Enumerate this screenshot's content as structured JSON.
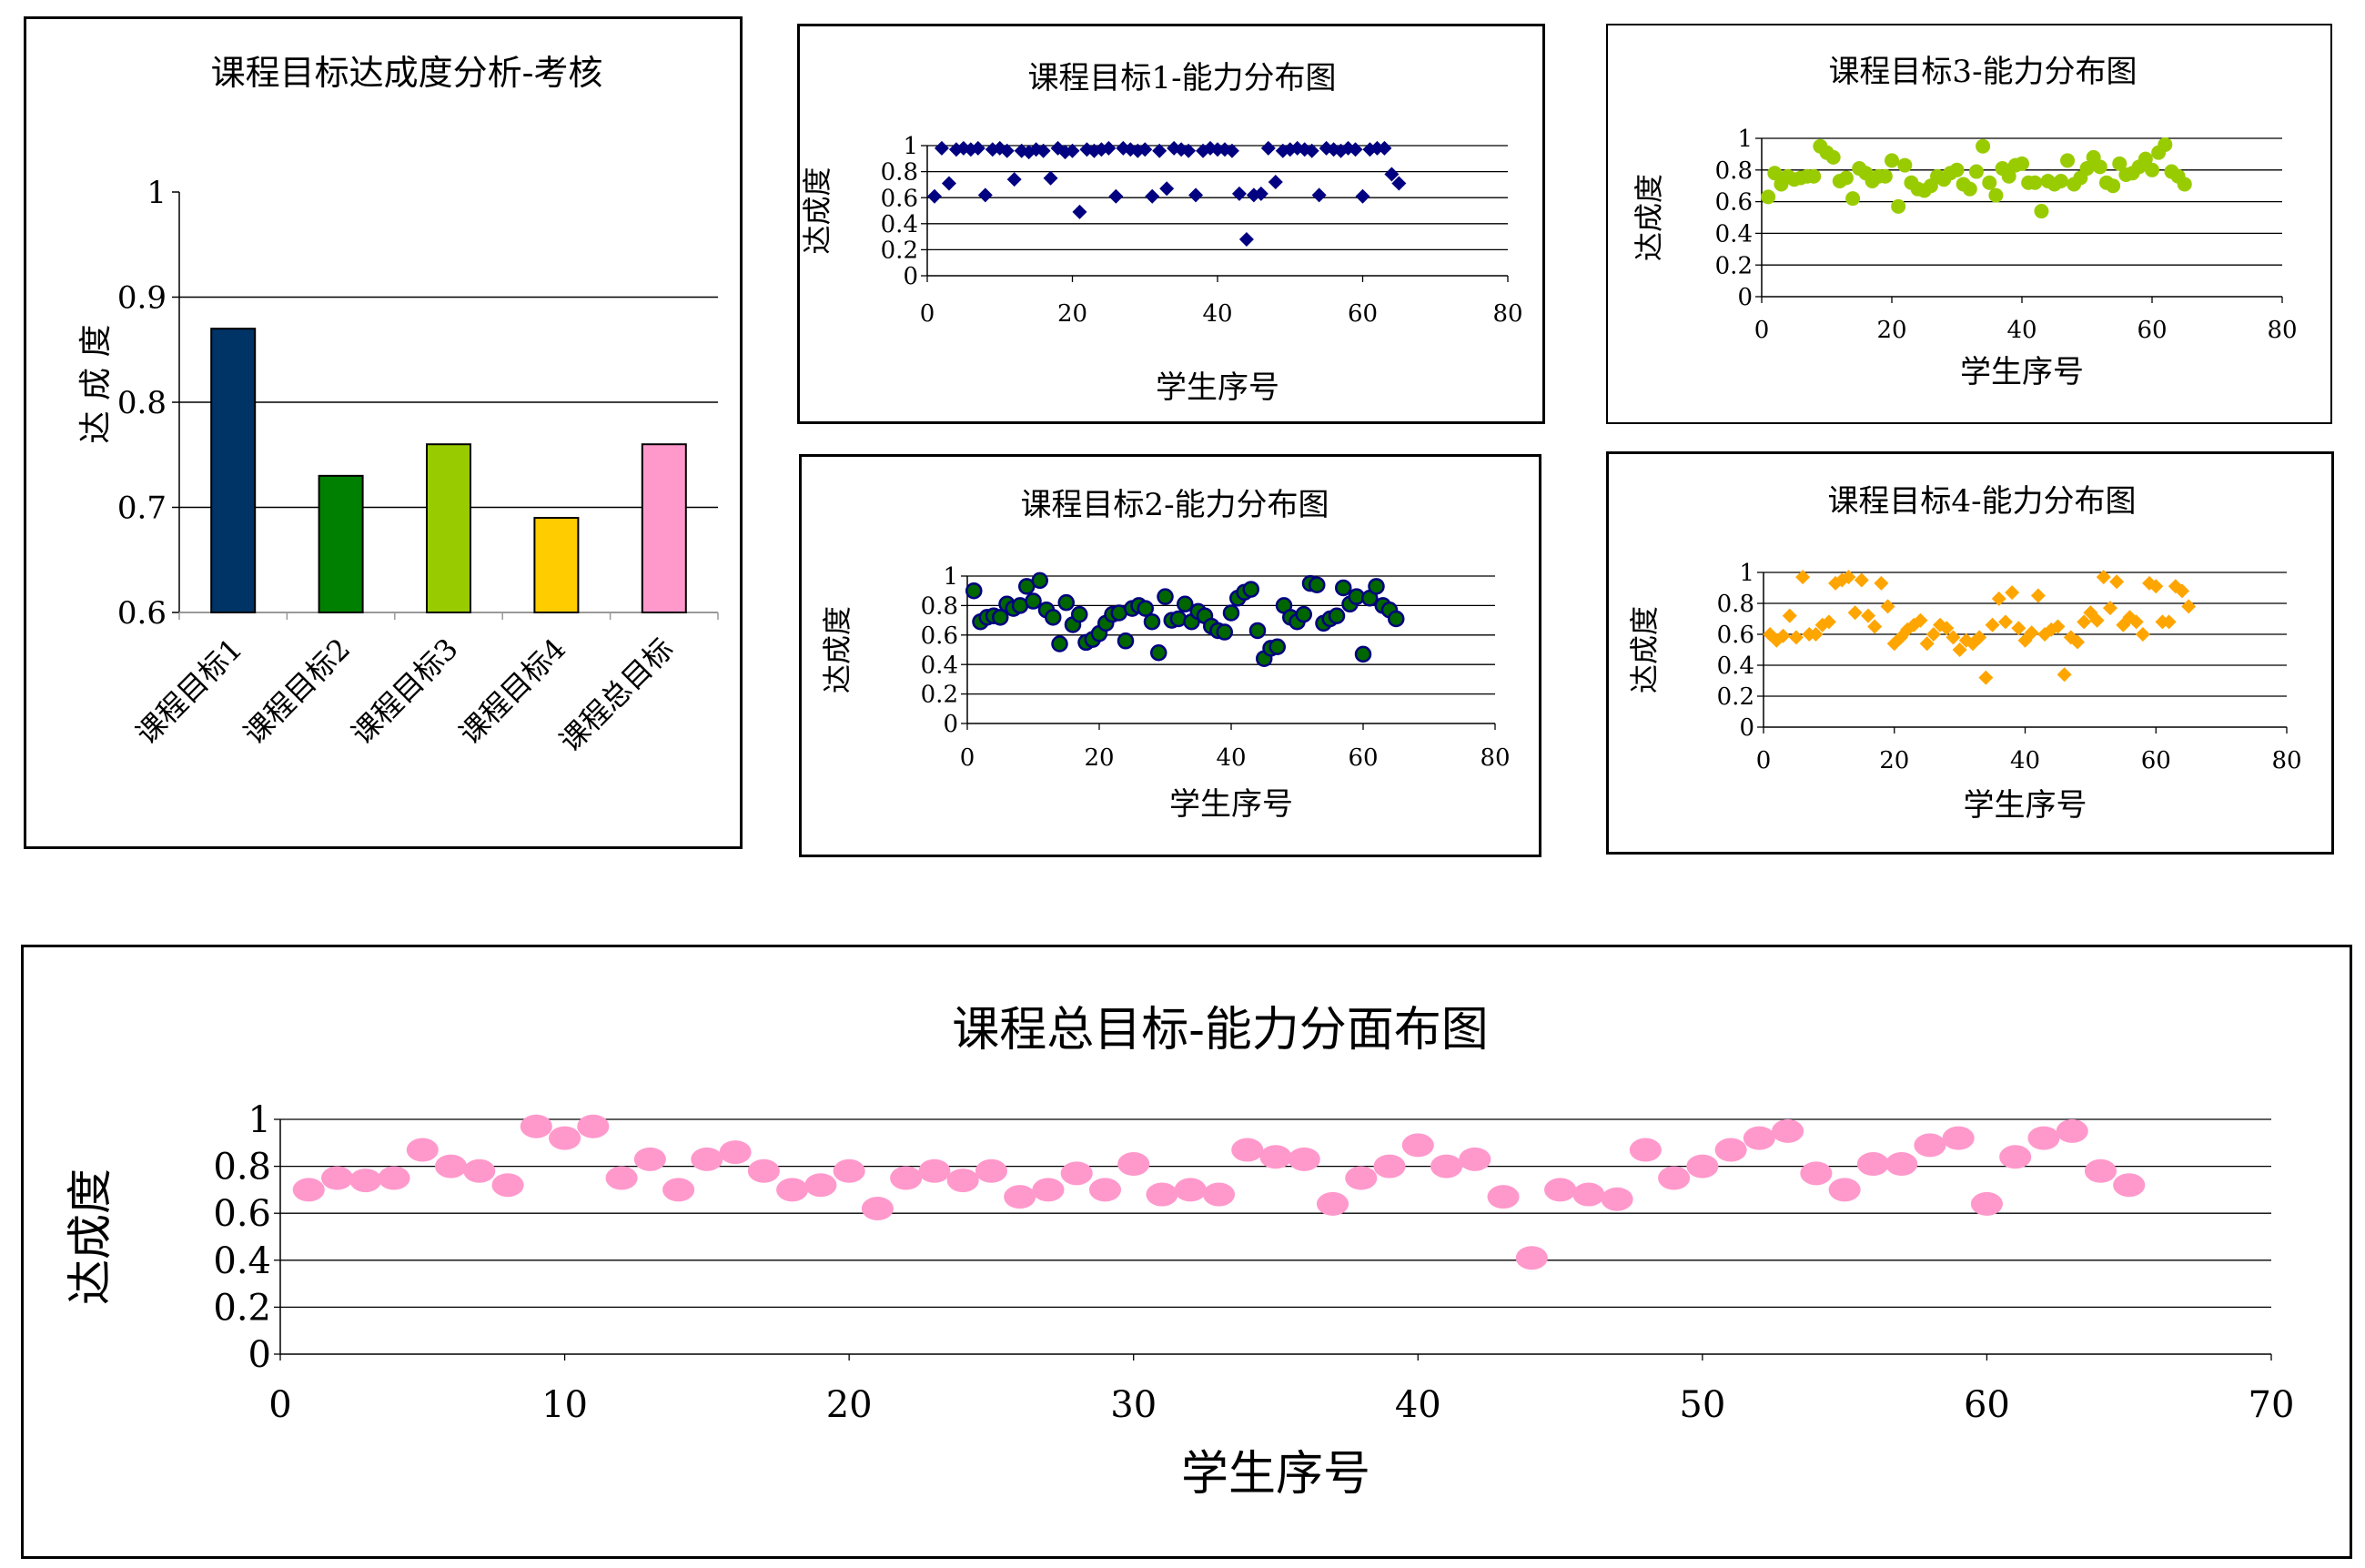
{
  "chart_data": [
    {
      "id": "bar",
      "type": "bar",
      "title": "课程目标达成度分析-考核",
      "ylabel": "达 成 度",
      "ylim": [
        0.6,
        1
      ],
      "yticks": [
        "0.6",
        "0.7",
        "0.8",
        "0.9",
        "1"
      ],
      "categories": [
        "课程目标1",
        "课程目标2",
        "课程目标3",
        "课程目标4",
        "课程总目标"
      ],
      "values": [
        0.87,
        0.73,
        0.76,
        0.69,
        0.76
      ],
      "colors": [
        "#003366",
        "#008000",
        "#99CC00",
        "#FFCC00",
        "#FF99CC"
      ],
      "grid": true
    },
    {
      "id": "s1",
      "type": "scatter",
      "title": "课程目标1-能力分布图",
      "xlabel": "学生序号",
      "ylabel": "达成度",
      "xlim": [
        0,
        80
      ],
      "ylim": [
        0,
        1
      ],
      "xticks": [
        "0",
        "20",
        "40",
        "60",
        "80"
      ],
      "yticks": [
        "0",
        "0.2",
        "0.4",
        "0.6",
        "0.8",
        "1"
      ],
      "marker": "diamond",
      "color": "#000080",
      "x": [
        1,
        2,
        3,
        4,
        5,
        6,
        7,
        8,
        9,
        10,
        11,
        12,
        13,
        14,
        15,
        16,
        17,
        18,
        19,
        20,
        21,
        22,
        23,
        24,
        25,
        26,
        27,
        28,
        29,
        30,
        31,
        32,
        33,
        34,
        35,
        36,
        37,
        38,
        39,
        40,
        41,
        42,
        43,
        44,
        45,
        46,
        47,
        48,
        49,
        50,
        51,
        52,
        53,
        54,
        55,
        56,
        57,
        58,
        59,
        60,
        61,
        62,
        63,
        64,
        65
      ],
      "y": [
        0.61,
        0.98,
        0.71,
        0.97,
        0.98,
        0.97,
        0.98,
        0.62,
        0.97,
        0.98,
        0.96,
        0.74,
        0.96,
        0.95,
        0.97,
        0.96,
        0.75,
        0.98,
        0.95,
        0.96,
        0.49,
        0.97,
        0.96,
        0.97,
        0.98,
        0.61,
        0.98,
        0.97,
        0.96,
        0.97,
        0.61,
        0.96,
        0.67,
        0.98,
        0.97,
        0.96,
        0.62,
        0.96,
        0.98,
        0.97,
        0.97,
        0.96,
        0.63,
        0.28,
        0.62,
        0.63,
        0.98,
        0.72,
        0.96,
        0.97,
        0.98,
        0.97,
        0.96,
        0.62,
        0.98,
        0.97,
        0.96,
        0.98,
        0.97,
        0.61,
        0.97,
        0.98,
        0.98,
        0.78,
        0.71
      ],
      "grid": true
    },
    {
      "id": "s3",
      "type": "scatter",
      "title": "课程目标3-能力分布图",
      "xlabel": "学生序号",
      "ylabel": "达成度",
      "xlim": [
        0,
        80
      ],
      "ylim": [
        0,
        1
      ],
      "xticks": [
        "0",
        "20",
        "40",
        "60",
        "80"
      ],
      "yticks": [
        "0",
        "0.2",
        "0.4",
        "0.6",
        "0.8",
        "1"
      ],
      "marker": "circle",
      "color": "#99CC00",
      "x": [
        1,
        2,
        3,
        4,
        5,
        6,
        7,
        8,
        9,
        10,
        11,
        12,
        13,
        14,
        15,
        16,
        17,
        18,
        19,
        20,
        21,
        22,
        23,
        24,
        25,
        26,
        27,
        28,
        29,
        30,
        31,
        32,
        33,
        34,
        35,
        36,
        37,
        38,
        39,
        40,
        41,
        42,
        43,
        44,
        45,
        46,
        47,
        48,
        49,
        50,
        51,
        52,
        53,
        54,
        55,
        56,
        57,
        58,
        59,
        60,
        61,
        62,
        63,
        64,
        65
      ],
      "y": [
        0.63,
        0.78,
        0.71,
        0.76,
        0.74,
        0.75,
        0.76,
        0.76,
        0.95,
        0.91,
        0.88,
        0.73,
        0.75,
        0.62,
        0.81,
        0.78,
        0.73,
        0.76,
        0.76,
        0.86,
        0.57,
        0.83,
        0.72,
        0.68,
        0.67,
        0.7,
        0.76,
        0.74,
        0.78,
        0.8,
        0.71,
        0.68,
        0.79,
        0.95,
        0.72,
        0.64,
        0.81,
        0.76,
        0.83,
        0.84,
        0.72,
        0.72,
        0.54,
        0.73,
        0.71,
        0.73,
        0.86,
        0.71,
        0.75,
        0.81,
        0.88,
        0.82,
        0.72,
        0.7,
        0.84,
        0.77,
        0.78,
        0.82,
        0.87,
        0.8,
        0.91,
        0.96,
        0.79,
        0.76,
        0.71
      ],
      "grid": true
    },
    {
      "id": "s2",
      "type": "scatter",
      "title": "课程目标2-能力分布图",
      "xlabel": "学生序号",
      "ylabel": "达成度",
      "xlim": [
        0,
        80
      ],
      "ylim": [
        0,
        1
      ],
      "xticks": [
        "0",
        "20",
        "40",
        "60",
        "80"
      ],
      "yticks": [
        "0",
        "0.2",
        "0.4",
        "0.6",
        "0.8",
        "1"
      ],
      "marker": "circle",
      "color": "#006600",
      "stroke": "#000080",
      "x": [
        1,
        2,
        3,
        4,
        5,
        6,
        7,
        8,
        9,
        10,
        11,
        12,
        13,
        14,
        15,
        16,
        17,
        18,
        19,
        20,
        21,
        22,
        23,
        24,
        25,
        26,
        27,
        28,
        29,
        30,
        31,
        32,
        33,
        34,
        35,
        36,
        37,
        38,
        39,
        40,
        41,
        42,
        43,
        44,
        45,
        46,
        47,
        48,
        49,
        50,
        51,
        52,
        53,
        54,
        55,
        56,
        57,
        58,
        59,
        60,
        61,
        62,
        63,
        64,
        65
      ],
      "y": [
        0.9,
        0.69,
        0.72,
        0.73,
        0.72,
        0.81,
        0.78,
        0.8,
        0.93,
        0.83,
        0.97,
        0.77,
        0.72,
        0.54,
        0.82,
        0.67,
        0.74,
        0.55,
        0.57,
        0.61,
        0.68,
        0.74,
        0.75,
        0.56,
        0.78,
        0.8,
        0.78,
        0.69,
        0.48,
        0.86,
        0.7,
        0.71,
        0.81,
        0.69,
        0.76,
        0.73,
        0.66,
        0.63,
        0.62,
        0.75,
        0.85,
        0.89,
        0.91,
        0.63,
        0.44,
        0.51,
        0.52,
        0.8,
        0.72,
        0.69,
        0.74,
        0.95,
        0.94,
        0.68,
        0.71,
        0.73,
        0.92,
        0.81,
        0.86,
        0.47,
        0.85,
        0.93,
        0.8,
        0.77,
        0.71
      ],
      "grid": true
    },
    {
      "id": "s4",
      "type": "scatter",
      "title": "课程目标4-能力分布图",
      "xlabel": "学生序号",
      "ylabel": "达成度",
      "xlim": [
        0,
        80
      ],
      "ylim": [
        0,
        1
      ],
      "xticks": [
        "0",
        "20",
        "40",
        "60",
        "80"
      ],
      "yticks": [
        "0",
        "0.2",
        "0.4",
        "0.6",
        "0.8",
        "1"
      ],
      "marker": "diamond",
      "color": "#FFA500",
      "x": [
        1,
        2,
        3,
        4,
        5,
        6,
        7,
        8,
        9,
        10,
        11,
        12,
        13,
        14,
        15,
        16,
        17,
        18,
        19,
        20,
        21,
        22,
        23,
        24,
        25,
        26,
        27,
        28,
        29,
        30,
        31,
        32,
        33,
        34,
        35,
        36,
        37,
        38,
        39,
        40,
        41,
        42,
        43,
        44,
        45,
        46,
        47,
        48,
        49,
        50,
        51,
        52,
        53,
        54,
        55,
        56,
        57,
        58,
        59,
        60,
        61,
        62,
        63,
        64,
        65
      ],
      "y": [
        0.6,
        0.56,
        0.59,
        0.72,
        0.58,
        0.97,
        0.6,
        0.6,
        0.66,
        0.68,
        0.93,
        0.95,
        0.97,
        0.74,
        0.95,
        0.72,
        0.65,
        0.93,
        0.78,
        0.54,
        0.58,
        0.63,
        0.66,
        0.69,
        0.54,
        0.6,
        0.66,
        0.64,
        0.58,
        0.5,
        0.56,
        0.54,
        0.58,
        0.32,
        0.66,
        0.83,
        0.68,
        0.87,
        0.64,
        0.56,
        0.61,
        0.85,
        0.6,
        0.63,
        0.65,
        0.34,
        0.58,
        0.55,
        0.68,
        0.74,
        0.69,
        0.97,
        0.77,
        0.94,
        0.66,
        0.71,
        0.68,
        0.6,
        0.93,
        0.91,
        0.68,
        0.68,
        0.91,
        0.88,
        0.78
      ],
      "grid": true
    },
    {
      "id": "tot",
      "type": "scatter",
      "title": "课程总目标-能力分面布图",
      "xlabel": "学生序号",
      "ylabel": "达成度",
      "xlim": [
        0,
        70
      ],
      "ylim": [
        0,
        1
      ],
      "xticks": [
        "0",
        "10",
        "20",
        "30",
        "40",
        "50",
        "60",
        "70"
      ],
      "yticks": [
        "0",
        "0.2",
        "0.4",
        "0.6",
        "0.8",
        "1"
      ],
      "marker": "ellipse",
      "color": "#FF99CC",
      "x": [
        1,
        2,
        3,
        4,
        5,
        6,
        7,
        8,
        9,
        10,
        11,
        12,
        13,
        14,
        15,
        16,
        17,
        18,
        19,
        20,
        21,
        22,
        23,
        24,
        25,
        26,
        27,
        28,
        29,
        30,
        31,
        32,
        33,
        34,
        35,
        36,
        37,
        38,
        39,
        40,
        41,
        42,
        43,
        44,
        45,
        46,
        47,
        48,
        49,
        50,
        51,
        52,
        53,
        54,
        55,
        56,
        57,
        58,
        59,
        60,
        61,
        62,
        63,
        64,
        65
      ],
      "y": [
        0.7,
        0.75,
        0.74,
        0.75,
        0.87,
        0.8,
        0.78,
        0.72,
        0.97,
        0.92,
        0.97,
        0.75,
        0.83,
        0.7,
        0.83,
        0.86,
        0.78,
        0.7,
        0.72,
        0.78,
        0.62,
        0.75,
        0.78,
        0.74,
        0.78,
        0.67,
        0.7,
        0.77,
        0.7,
        0.81,
        0.68,
        0.7,
        0.68,
        0.87,
        0.84,
        0.83,
        0.64,
        0.75,
        0.8,
        0.89,
        0.8,
        0.83,
        0.67,
        0.41,
        0.7,
        0.68,
        0.66,
        0.87,
        0.75,
        0.8,
        0.87,
        0.92,
        0.95,
        0.77,
        0.7,
        0.81,
        0.81,
        0.89,
        0.92,
        0.64,
        0.84,
        0.92,
        0.95,
        0.78,
        0.72
      ],
      "grid": true
    }
  ]
}
